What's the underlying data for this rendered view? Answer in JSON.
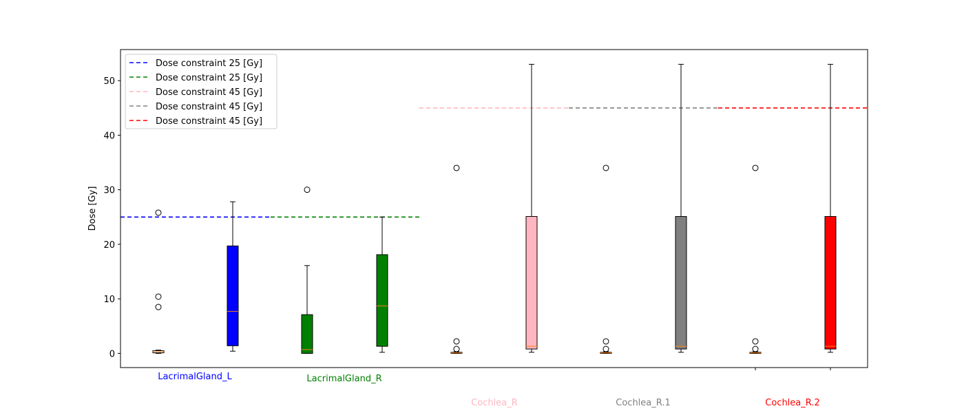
{
  "chart_data": {
    "type": "box",
    "ylabel": "Dose [Gy]",
    "ylim": [
      -2.6,
      55.7
    ],
    "yticks": [
      0,
      10,
      20,
      30,
      40,
      50
    ],
    "legend_position": "upper-left",
    "groups": [
      {
        "name": "LacrimalGland_L",
        "color": "#0000ff",
        "constraint": 25,
        "constraint_label": "Dose constraint  25 [Gy]"
      },
      {
        "name": "LacrimalGland_R",
        "color": "#008000",
        "constraint": 25,
        "constraint_label": "Dose constraint  25 [Gy]"
      },
      {
        "name": "Cochlea_R",
        "color": "#ffb6c1",
        "constraint": 45,
        "constraint_label": "Dose constraint  45 [Gy]"
      },
      {
        "name": "Cochlea_R.1",
        "color": "#808080",
        "constraint": 45,
        "constraint_label": "Dose constraint  45 [Gy]"
      },
      {
        "name": "Cochlea_R.2",
        "color": "#ff0000",
        "constraint": 45,
        "constraint_label": "Dose constraint  45 [Gy]"
      }
    ],
    "boxes": [
      {
        "group": 0,
        "filled": false,
        "q1": 0.1,
        "median": 0.3,
        "q3": 0.5,
        "whisker_low": 0.0,
        "whisker_high": 0.6,
        "fliers": [
          8.5,
          10.4,
          25.8
        ]
      },
      {
        "group": 0,
        "filled": true,
        "q1": 1.4,
        "median": 7.7,
        "q3": 19.7,
        "whisker_low": 0.4,
        "whisker_high": 27.8,
        "fliers": []
      },
      {
        "group": 1,
        "filled": true,
        "q1": 0.0,
        "median": 0.7,
        "q3": 7.1,
        "whisker_low": 0.0,
        "whisker_high": 16.1,
        "fliers": [
          30.0
        ]
      },
      {
        "group": 1,
        "filled": true,
        "q1": 1.3,
        "median": 8.7,
        "q3": 18.1,
        "whisker_low": 0.2,
        "whisker_high": 25.0,
        "fliers": []
      },
      {
        "group": 2,
        "filled": false,
        "q1": 0.0,
        "median": 0.1,
        "q3": 0.2,
        "whisker_low": 0.0,
        "whisker_high": 0.3,
        "fliers": [
          0.8,
          2.2,
          34.0
        ]
      },
      {
        "group": 2,
        "filled": true,
        "q1": 0.8,
        "median": 1.3,
        "q3": 25.1,
        "whisker_low": 0.2,
        "whisker_high": 53.0,
        "fliers": []
      },
      {
        "group": 3,
        "filled": false,
        "q1": 0.0,
        "median": 0.1,
        "q3": 0.2,
        "whisker_low": 0.0,
        "whisker_high": 0.3,
        "fliers": [
          0.8,
          2.2,
          34.0
        ]
      },
      {
        "group": 3,
        "filled": true,
        "q1": 0.8,
        "median": 1.3,
        "q3": 25.1,
        "whisker_low": 0.2,
        "whisker_high": 53.0,
        "fliers": []
      },
      {
        "group": 4,
        "filled": false,
        "q1": 0.0,
        "median": 0.1,
        "q3": 0.2,
        "whisker_low": 0.0,
        "whisker_high": 0.3,
        "fliers": [
          0.8,
          2.2,
          34.0
        ]
      },
      {
        "group": 4,
        "filled": true,
        "q1": 0.8,
        "median": 1.3,
        "q3": 25.1,
        "whisker_low": 0.2,
        "whisker_high": 53.0,
        "fliers": []
      }
    ],
    "median_color": "#ff7f0e",
    "grid": false
  }
}
